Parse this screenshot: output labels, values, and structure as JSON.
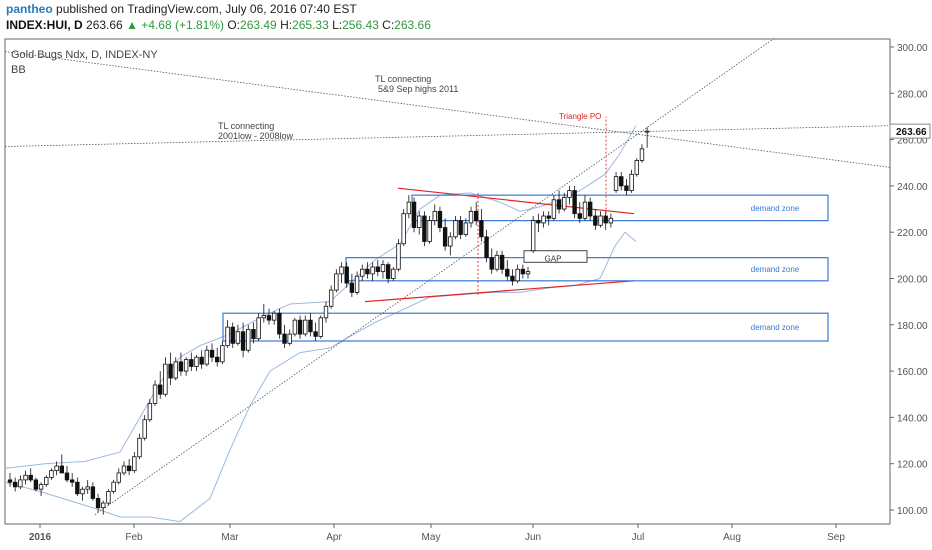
{
  "header": {
    "author": "pantheo",
    "published": "published on TradingView.com, July 06, 2016 07:40 EST",
    "symbol": "INDEX:HUI, D",
    "last": "263.66",
    "change": "▲ +4.68 (+1.81%)",
    "o_label": "O:",
    "o_value": "263.49",
    "h_label": "H:",
    "h_value": "265.33",
    "l_label": "L:",
    "l_value": "256.43",
    "c_label": "C:",
    "c_value": "263.66"
  },
  "chart_data": {
    "type": "candlestick",
    "title": "Gold Bugs Ndx, D, INDEX-NY",
    "subtitle": "BB",
    "y_ticks": [
      "300.00",
      "280.00",
      "260.00",
      "240.00",
      "220.00",
      "200.00",
      "180.00",
      "160.00",
      "140.00",
      "120.00",
      "100.00"
    ],
    "x_ticks": [
      "2016",
      "Feb",
      "Mar",
      "Apr",
      "May",
      "Jun",
      "Jul",
      "Aug",
      "Sep"
    ],
    "ylim": [
      96,
      302
    ],
    "last_price_label": "263.66",
    "annotations": {
      "tl1_line1": "TL connecting",
      "tl1_line2": "5&9 Sep highs 2011",
      "tl2_line1": "TL connecting",
      "tl2_line2": "2001low - 2008low",
      "triangle_po": "Triangle PO",
      "gap": "GAP",
      "demand_zone": "demand zone"
    },
    "demand_zones": [
      {
        "low": 225,
        "high": 236
      },
      {
        "low": 199,
        "high": 209
      },
      {
        "low": 173,
        "high": 185
      }
    ],
    "colors": {
      "up": "#ffffff",
      "down": "#111111",
      "bb": "#9cb8e0",
      "zone": "#3b78d8",
      "triangle": "#e02424",
      "accent": "#2a7ab8"
    },
    "series": [
      {
        "o": 113,
        "h": 116,
        "l": 110,
        "c": 112
      },
      {
        "o": 112,
        "h": 114,
        "l": 108,
        "c": 110
      },
      {
        "o": 110,
        "h": 115,
        "l": 109,
        "c": 113
      },
      {
        "o": 113,
        "h": 117,
        "l": 111,
        "c": 115
      },
      {
        "o": 115,
        "h": 118,
        "l": 112,
        "c": 113
      },
      {
        "o": 113,
        "h": 114,
        "l": 108,
        "c": 109
      },
      {
        "o": 109,
        "h": 112,
        "l": 106,
        "c": 111
      },
      {
        "o": 111,
        "h": 115,
        "l": 110,
        "c": 114
      },
      {
        "o": 114,
        "h": 118,
        "l": 113,
        "c": 117
      },
      {
        "o": 117,
        "h": 121,
        "l": 115,
        "c": 119
      },
      {
        "o": 119,
        "h": 124,
        "l": 116,
        "c": 116
      },
      {
        "o": 116,
        "h": 119,
        "l": 112,
        "c": 113
      },
      {
        "o": 113,
        "h": 116,
        "l": 110,
        "c": 112
      },
      {
        "o": 112,
        "h": 114,
        "l": 106,
        "c": 107
      },
      {
        "o": 107,
        "h": 110,
        "l": 104,
        "c": 109
      },
      {
        "o": 109,
        "h": 113,
        "l": 107,
        "c": 110
      },
      {
        "o": 110,
        "h": 112,
        "l": 104,
        "c": 105
      },
      {
        "o": 105,
        "h": 107,
        "l": 99,
        "c": 101
      },
      {
        "o": 101,
        "h": 104,
        "l": 98,
        "c": 103
      },
      {
        "o": 103,
        "h": 109,
        "l": 102,
        "c": 108
      },
      {
        "o": 108,
        "h": 113,
        "l": 107,
        "c": 112
      },
      {
        "o": 112,
        "h": 118,
        "l": 111,
        "c": 116
      },
      {
        "o": 116,
        "h": 121,
        "l": 115,
        "c": 119
      },
      {
        "o": 119,
        "h": 122,
        "l": 115,
        "c": 117
      },
      {
        "o": 117,
        "h": 125,
        "l": 116,
        "c": 123
      },
      {
        "o": 123,
        "h": 133,
        "l": 122,
        "c": 131
      },
      {
        "o": 131,
        "h": 141,
        "l": 130,
        "c": 139
      },
      {
        "o": 139,
        "h": 148,
        "l": 138,
        "c": 146
      },
      {
        "o": 146,
        "h": 156,
        "l": 145,
        "c": 154
      },
      {
        "o": 154,
        "h": 160,
        "l": 148,
        "c": 150
      },
      {
        "o": 150,
        "h": 166,
        "l": 149,
        "c": 163
      },
      {
        "o": 163,
        "h": 168,
        "l": 154,
        "c": 157
      },
      {
        "o": 157,
        "h": 166,
        "l": 156,
        "c": 164
      },
      {
        "o": 164,
        "h": 168,
        "l": 158,
        "c": 160
      },
      {
        "o": 160,
        "h": 166,
        "l": 158,
        "c": 165
      },
      {
        "o": 165,
        "h": 168,
        "l": 160,
        "c": 162
      },
      {
        "o": 162,
        "h": 167,
        "l": 160,
        "c": 166
      },
      {
        "o": 166,
        "h": 169,
        "l": 161,
        "c": 163
      },
      {
        "o": 163,
        "h": 171,
        "l": 162,
        "c": 169
      },
      {
        "o": 169,
        "h": 172,
        "l": 164,
        "c": 166
      },
      {
        "o": 166,
        "h": 170,
        "l": 162,
        "c": 164
      },
      {
        "o": 164,
        "h": 173,
        "l": 163,
        "c": 171
      },
      {
        "o": 171,
        "h": 182,
        "l": 170,
        "c": 179
      },
      {
        "o": 179,
        "h": 181,
        "l": 170,
        "c": 172
      },
      {
        "o": 172,
        "h": 180,
        "l": 171,
        "c": 177
      },
      {
        "o": 177,
        "h": 181,
        "l": 166,
        "c": 169
      },
      {
        "o": 169,
        "h": 180,
        "l": 168,
        "c": 178
      },
      {
        "o": 178,
        "h": 181,
        "l": 172,
        "c": 174
      },
      {
        "o": 174,
        "h": 185,
        "l": 173,
        "c": 183
      },
      {
        "o": 183,
        "h": 189,
        "l": 181,
        "c": 184
      },
      {
        "o": 184,
        "h": 187,
        "l": 180,
        "c": 182
      },
      {
        "o": 182,
        "h": 186,
        "l": 180,
        "c": 185
      },
      {
        "o": 185,
        "h": 187,
        "l": 174,
        "c": 176
      },
      {
        "o": 176,
        "h": 180,
        "l": 170,
        "c": 172
      },
      {
        "o": 172,
        "h": 178,
        "l": 171,
        "c": 176
      },
      {
        "o": 176,
        "h": 183,
        "l": 175,
        "c": 182
      },
      {
        "o": 182,
        "h": 184,
        "l": 174,
        "c": 176
      },
      {
        "o": 176,
        "h": 184,
        "l": 175,
        "c": 182
      },
      {
        "o": 182,
        "h": 185,
        "l": 175,
        "c": 177
      },
      {
        "o": 177,
        "h": 181,
        "l": 173,
        "c": 175
      },
      {
        "o": 175,
        "h": 184,
        "l": 174,
        "c": 183
      },
      {
        "o": 183,
        "h": 190,
        "l": 181,
        "c": 188
      },
      {
        "o": 188,
        "h": 197,
        "l": 187,
        "c": 195
      },
      {
        "o": 195,
        "h": 204,
        "l": 194,
        "c": 202
      },
      {
        "o": 202,
        "h": 207,
        "l": 198,
        "c": 205
      },
      {
        "o": 205,
        "h": 207,
        "l": 196,
        "c": 198
      },
      {
        "o": 198,
        "h": 202,
        "l": 192,
        "c": 194
      },
      {
        "o": 194,
        "h": 203,
        "l": 193,
        "c": 201
      },
      {
        "o": 201,
        "h": 206,
        "l": 199,
        "c": 204
      },
      {
        "o": 204,
        "h": 207,
        "l": 200,
        "c": 202
      },
      {
        "o": 202,
        "h": 207,
        "l": 199,
        "c": 205
      },
      {
        "o": 205,
        "h": 208,
        "l": 201,
        "c": 203
      },
      {
        "o": 203,
        "h": 208,
        "l": 200,
        "c": 206
      },
      {
        "o": 206,
        "h": 207,
        "l": 198,
        "c": 200
      },
      {
        "o": 200,
        "h": 205,
        "l": 199,
        "c": 204
      },
      {
        "o": 204,
        "h": 217,
        "l": 203,
        "c": 215
      },
      {
        "o": 215,
        "h": 230,
        "l": 214,
        "c": 228
      },
      {
        "o": 228,
        "h": 236,
        "l": 226,
        "c": 233
      },
      {
        "o": 233,
        "h": 235,
        "l": 220,
        "c": 222
      },
      {
        "o": 222,
        "h": 229,
        "l": 219,
        "c": 227
      },
      {
        "o": 227,
        "h": 229,
        "l": 214,
        "c": 216
      },
      {
        "o": 216,
        "h": 227,
        "l": 215,
        "c": 225
      },
      {
        "o": 225,
        "h": 232,
        "l": 223,
        "c": 229
      },
      {
        "o": 229,
        "h": 231,
        "l": 220,
        "c": 222
      },
      {
        "o": 222,
        "h": 226,
        "l": 212,
        "c": 214
      },
      {
        "o": 214,
        "h": 220,
        "l": 210,
        "c": 218
      },
      {
        "o": 218,
        "h": 227,
        "l": 217,
        "c": 225
      },
      {
        "o": 225,
        "h": 227,
        "l": 217,
        "c": 219
      },
      {
        "o": 219,
        "h": 226,
        "l": 218,
        "c": 224
      },
      {
        "o": 224,
        "h": 231,
        "l": 222,
        "c": 229
      },
      {
        "o": 229,
        "h": 233,
        "l": 223,
        "c": 225
      },
      {
        "o": 225,
        "h": 230,
        "l": 216,
        "c": 218
      },
      {
        "o": 218,
        "h": 221,
        "l": 207,
        "c": 209
      },
      {
        "o": 209,
        "h": 213,
        "l": 202,
        "c": 204
      },
      {
        "o": 204,
        "h": 212,
        "l": 203,
        "c": 210
      },
      {
        "o": 210,
        "h": 212,
        "l": 202,
        "c": 204
      },
      {
        "o": 204,
        "h": 208,
        "l": 199,
        "c": 201
      },
      {
        "o": 201,
        "h": 204,
        "l": 197,
        "c": 199
      },
      {
        "o": 199,
        "h": 206,
        "l": 198,
        "c": 204
      },
      {
        "o": 204,
        "h": 206,
        "l": 200,
        "c": 202
      },
      {
        "o": 202,
        "h": 205,
        "l": 200,
        "c": 203
      },
      {
        "o": 212,
        "h": 227,
        "l": 211,
        "c": 225
      },
      {
        "o": 225,
        "h": 228,
        "l": 220,
        "c": 224
      },
      {
        "o": 224,
        "h": 229,
        "l": 222,
        "c": 227
      },
      {
        "o": 227,
        "h": 229,
        "l": 223,
        "c": 226
      },
      {
        "o": 226,
        "h": 236,
        "l": 225,
        "c": 234
      },
      {
        "o": 234,
        "h": 238,
        "l": 228,
        "c": 230
      },
      {
        "o": 230,
        "h": 237,
        "l": 229,
        "c": 235
      },
      {
        "o": 235,
        "h": 240,
        "l": 232,
        "c": 238
      },
      {
        "o": 238,
        "h": 240,
        "l": 226,
        "c": 228
      },
      {
        "o": 228,
        "h": 233,
        "l": 224,
        "c": 226
      },
      {
        "o": 226,
        "h": 236,
        "l": 225,
        "c": 233
      },
      {
        "o": 233,
        "h": 235,
        "l": 225,
        "c": 227
      },
      {
        "o": 227,
        "h": 230,
        "l": 221,
        "c": 223
      },
      {
        "o": 223,
        "h": 229,
        "l": 222,
        "c": 227
      },
      {
        "o": 227,
        "h": 229,
        "l": 221,
        "c": 224
      },
      {
        "o": 224,
        "h": 228,
        "l": 222,
        "c": 226
      },
      {
        "o": 238,
        "h": 246,
        "l": 237,
        "c": 244
      },
      {
        "o": 244,
        "h": 246,
        "l": 238,
        "c": 240
      },
      {
        "o": 240,
        "h": 243,
        "l": 236,
        "c": 238
      },
      {
        "o": 238,
        "h": 247,
        "l": 237,
        "c": 245
      },
      {
        "o": 245,
        "h": 252,
        "l": 244,
        "c": 251
      },
      {
        "o": 251,
        "h": 258,
        "l": 250,
        "c": 256
      },
      {
        "o": 263.49,
        "h": 265.33,
        "l": 256.43,
        "c": 263.66
      }
    ]
  }
}
